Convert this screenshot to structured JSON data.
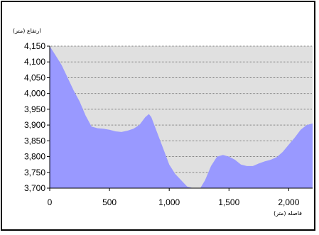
{
  "chart_data": {
    "type": "area",
    "xlabel": "فاصله (متر)",
    "ylabel": "ارتفاع (متر)",
    "xlim": [
      0,
      2200
    ],
    "ylim": [
      3700,
      4150
    ],
    "x_ticks": [
      "0",
      "500",
      "1,000",
      "1,500",
      "2,000"
    ],
    "y_ticks": [
      "4,150",
      "4,100",
      "4,050",
      "4,000",
      "3,950",
      "3,900",
      "3,850",
      "3,800",
      "3,750",
      "3,700"
    ],
    "grid": true,
    "legend": "none",
    "colors": {
      "fill": "#9999ff",
      "plot_bg": "#e0e0e0",
      "grid": "#808080"
    },
    "series": [
      {
        "x": [
          0,
          50,
          100,
          150,
          200,
          250,
          300,
          350,
          400,
          450,
          500,
          550,
          600,
          650,
          700,
          750,
          800,
          830,
          850,
          900,
          950,
          1000,
          1050,
          1100,
          1150,
          1200,
          1260,
          1300,
          1350,
          1400,
          1450,
          1500,
          1550,
          1600,
          1650,
          1700,
          1750,
          1800,
          1850,
          1900,
          1950,
          2000,
          2050,
          2100,
          2150,
          2200
        ],
        "values": [
          4150,
          4120,
          4090,
          4050,
          4010,
          3975,
          3930,
          3895,
          3890,
          3888,
          3885,
          3880,
          3878,
          3882,
          3888,
          3900,
          3925,
          3935,
          3925,
          3875,
          3825,
          3775,
          3745,
          3725,
          3705,
          3700,
          3700,
          3725,
          3770,
          3800,
          3805,
          3800,
          3790,
          3775,
          3770,
          3770,
          3778,
          3785,
          3790,
          3798,
          3815,
          3838,
          3860,
          3885,
          3900,
          3905
        ]
      }
    ]
  }
}
